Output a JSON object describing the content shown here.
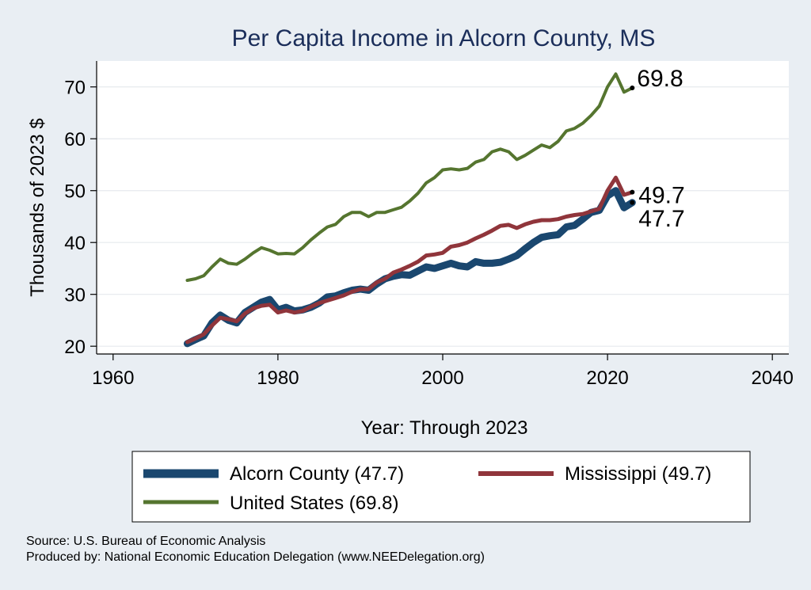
{
  "chart_data": {
    "type": "line",
    "title": "Per Capita Income in Alcorn County, MS",
    "xlabel": "Year: Through 2023",
    "ylabel": "Thousands of 2023 $",
    "xlim": [
      1958,
      2042
    ],
    "ylim": [
      18.5,
      75
    ],
    "xticks": [
      1960,
      1980,
      2000,
      2020,
      2040
    ],
    "yticks": [
      20,
      30,
      40,
      50,
      60,
      70
    ],
    "grid": true,
    "legend_position": "bottom",
    "x": [
      1969,
      1970,
      1971,
      1972,
      1973,
      1974,
      1975,
      1976,
      1977,
      1978,
      1979,
      1980,
      1981,
      1982,
      1983,
      1984,
      1985,
      1986,
      1987,
      1988,
      1989,
      1990,
      1991,
      1992,
      1993,
      1994,
      1995,
      1996,
      1997,
      1998,
      1999,
      2000,
      2001,
      2002,
      2003,
      2004,
      2005,
      2006,
      2007,
      2008,
      2009,
      2010,
      2011,
      2012,
      2013,
      2014,
      2015,
      2016,
      2017,
      2018,
      2019,
      2020,
      2021,
      2022,
      2023
    ],
    "series": [
      {
        "name": "Alcorn County (47.7)",
        "color": "#1a476f",
        "end_label": "47.7",
        "values": [
          20.5,
          21.3,
          22.0,
          24.5,
          26.0,
          25.0,
          24.5,
          26.5,
          27.5,
          28.5,
          29.0,
          27.0,
          27.5,
          26.8,
          27.0,
          27.5,
          28.3,
          29.5,
          29.7,
          30.3,
          30.8,
          31.0,
          30.8,
          32.0,
          33.0,
          33.5,
          33.8,
          33.7,
          34.5,
          35.3,
          35.0,
          35.5,
          36.0,
          35.5,
          35.3,
          36.3,
          36.0,
          36.0,
          36.2,
          36.8,
          37.5,
          38.8,
          40.0,
          41.0,
          41.3,
          41.5,
          43.0,
          43.3,
          44.5,
          45.8,
          46.2,
          49.0,
          50.0,
          46.7,
          47.7
        ]
      },
      {
        "name": "Mississippi (49.7)",
        "color": "#90353b",
        "end_label": "49.7",
        "values": [
          20.8,
          21.5,
          22.3,
          24.0,
          25.5,
          25.2,
          24.8,
          26.3,
          27.3,
          27.8,
          28.0,
          26.5,
          26.9,
          26.5,
          26.8,
          27.6,
          28.3,
          28.8,
          29.3,
          29.8,
          30.5,
          31.0,
          31.0,
          32.3,
          33.0,
          34.2,
          34.8,
          35.5,
          36.3,
          37.5,
          37.7,
          38.0,
          39.2,
          39.5,
          40.0,
          40.8,
          41.5,
          42.3,
          43.2,
          43.4,
          42.8,
          43.5,
          44.0,
          44.3,
          44.3,
          44.5,
          45.0,
          45.3,
          45.5,
          46.0,
          46.5,
          50.0,
          52.5,
          49.2,
          49.7
        ]
      },
      {
        "name": "United States (69.8)",
        "color": "#55752f",
        "end_label": "69.8",
        "values": [
          32.7,
          33.0,
          33.6,
          35.3,
          36.8,
          36.0,
          35.8,
          36.8,
          38.0,
          39.0,
          38.5,
          37.8,
          37.9,
          37.8,
          39.0,
          40.5,
          41.8,
          43.0,
          43.5,
          45.0,
          45.8,
          45.8,
          45.0,
          45.8,
          45.8,
          46.3,
          46.8,
          48.0,
          49.5,
          51.5,
          52.5,
          54.0,
          54.2,
          54.0,
          54.3,
          55.5,
          56.0,
          57.5,
          58.0,
          57.5,
          56.0,
          56.8,
          57.8,
          58.8,
          58.3,
          59.5,
          61.5,
          62.0,
          63.0,
          64.5,
          66.3,
          70.0,
          72.5,
          69.0,
          69.8
        ]
      }
    ]
  },
  "source_lines": [
    "Source: U.S. Bureau of Economic Analysis",
    "Produced by: National Economic Education Delegation (www.NEEDelegation.org)"
  ]
}
